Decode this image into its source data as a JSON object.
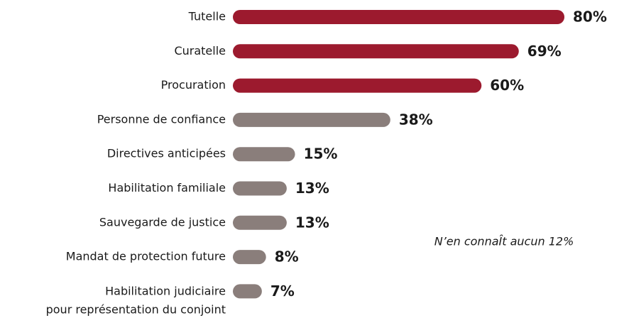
{
  "chart_data": {
    "type": "hbar",
    "categories": [
      "Tutelle",
      "Curatelle",
      "Procuration",
      "Personne de confiance",
      "Directives anticipées",
      "Habilitation familiale",
      "Sauvegarde de justice",
      "Mandat de protection future",
      "Habilitation judiciaire\npour représentation du conjoint"
    ],
    "values": [
      80,
      69,
      60,
      38,
      15,
      13,
      13,
      8,
      7
    ],
    "value_labels": [
      "80%",
      "69%",
      "60%",
      "38%",
      "15%",
      "13%",
      "13%",
      "8%",
      "7%"
    ],
    "colors": [
      "#9c1a2e",
      "#9c1a2e",
      "#9c1a2e",
      "#8a7e7b",
      "#8a7e7b",
      "#8a7e7b",
      "#8a7e7b",
      "#8a7e7b",
      "#8a7e7b"
    ],
    "annotation": "N’en connaÎt aucun 12%"
  }
}
